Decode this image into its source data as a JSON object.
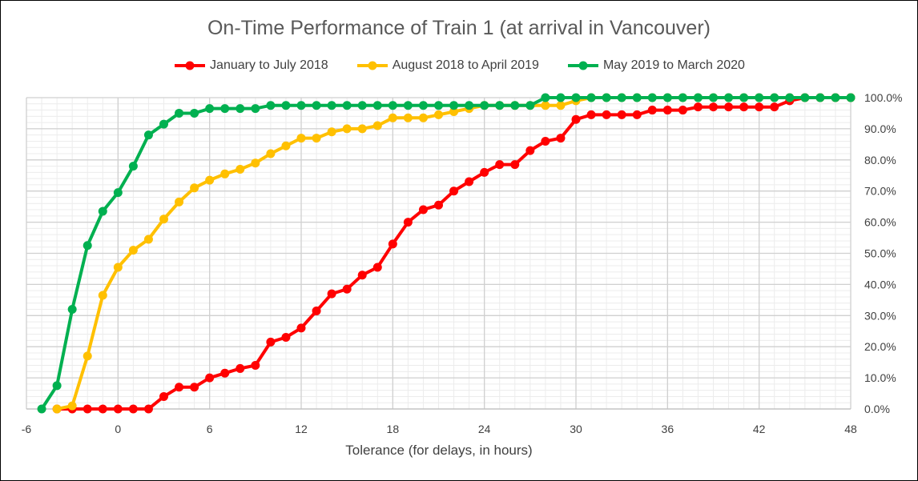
{
  "chart_data": {
    "type": "line",
    "title": "On-Time Performance of Train 1 (at arrival in Vancouver)",
    "xlabel": "Tolerance (for delays, in hours)",
    "ylabel": "",
    "xlim": [
      -6,
      48
    ],
    "ylim": [
      0,
      100
    ],
    "x_ticks": [
      -6,
      0,
      6,
      12,
      18,
      24,
      30,
      36,
      42,
      48
    ],
    "x_tick_labels": [
      "-6",
      "0",
      "6",
      "12",
      "18",
      "24",
      "30",
      "36",
      "42",
      "48"
    ],
    "y_ticks": [
      0,
      10,
      20,
      30,
      40,
      50,
      60,
      70,
      80,
      90,
      100
    ],
    "y_tick_labels": [
      "0.0%",
      "10.0%",
      "20.0%",
      "30.0%",
      "40.0%",
      "50.0%",
      "60.0%",
      "70.0%",
      "80.0%",
      "90.0%",
      "100.0%"
    ],
    "grid": true,
    "legend_position": "top",
    "y_axis_side": "right",
    "series": [
      {
        "name": "January to July 2018",
        "color": "#ff0000",
        "x": [
          -4,
          -3,
          -2,
          -1,
          0,
          1,
          2,
          3,
          4,
          5,
          6,
          7,
          8,
          9,
          10,
          11,
          12,
          13,
          14,
          15,
          16,
          17,
          18,
          19,
          20,
          21,
          22,
          23,
          24,
          25,
          26,
          27,
          28,
          29,
          30,
          31,
          32,
          33,
          34,
          35,
          36,
          37,
          38,
          39,
          40,
          41,
          42,
          43,
          44,
          45,
          46,
          47,
          48
        ],
        "values": [
          0,
          0,
          0,
          0,
          0,
          0,
          0,
          4,
          7,
          7,
          10,
          11.5,
          13,
          14,
          21.5,
          23,
          26,
          31.5,
          37,
          38.5,
          43,
          45.5,
          53,
          60,
          64,
          65.5,
          70,
          73,
          76,
          78.5,
          78.5,
          83,
          86,
          87,
          93,
          94.5,
          94.5,
          94.5,
          94.5,
          96,
          96,
          96,
          97,
          97,
          97,
          97,
          97,
          97,
          99,
          100,
          100,
          100,
          100
        ]
      },
      {
        "name": "August 2018 to April 2019",
        "color": "#ffc000",
        "x": [
          -4,
          -3,
          -2,
          -1,
          0,
          1,
          2,
          3,
          4,
          5,
          6,
          7,
          8,
          9,
          10,
          11,
          12,
          13,
          14,
          15,
          16,
          17,
          18,
          19,
          20,
          21,
          22,
          23,
          24,
          25,
          26,
          27,
          28,
          29,
          30,
          31,
          32,
          33,
          34,
          35,
          36,
          37,
          38,
          39,
          40,
          41,
          42,
          43,
          44,
          45,
          46,
          47,
          48
        ],
        "values": [
          0,
          1,
          17,
          36.5,
          45.5,
          51,
          54.5,
          61,
          66.5,
          71,
          73.5,
          75.5,
          77,
          79,
          82,
          84.5,
          87,
          87,
          89,
          90,
          90,
          91,
          93.5,
          93.5,
          93.5,
          94.5,
          95.5,
          96.5,
          97.5,
          97.5,
          97.5,
          97.5,
          97.5,
          97.5,
          99,
          100,
          100,
          100,
          100,
          100,
          100,
          100,
          100,
          100,
          100,
          100,
          100,
          100,
          100,
          100,
          100,
          100,
          100
        ]
      },
      {
        "name": "May 2019 to March 2020",
        "color": "#00b050",
        "x": [
          -5,
          -4,
          -3,
          -2,
          -1,
          0,
          1,
          2,
          3,
          4,
          5,
          6,
          7,
          8,
          9,
          10,
          11,
          12,
          13,
          14,
          15,
          16,
          17,
          18,
          19,
          20,
          21,
          22,
          23,
          24,
          25,
          26,
          27,
          28,
          29,
          30,
          31,
          32,
          33,
          34,
          35,
          36,
          37,
          38,
          39,
          40,
          41,
          42,
          43,
          44,
          45,
          46,
          47,
          48
        ],
        "values": [
          0,
          7.5,
          32,
          52.5,
          63.5,
          69.5,
          78,
          88,
          91.5,
          95,
          95,
          96.5,
          96.5,
          96.5,
          96.5,
          97.5,
          97.5,
          97.5,
          97.5,
          97.5,
          97.5,
          97.5,
          97.5,
          97.5,
          97.5,
          97.5,
          97.5,
          97.5,
          97.5,
          97.5,
          97.5,
          97.5,
          97.5,
          100,
          100,
          100,
          100,
          100,
          100,
          100,
          100,
          100,
          100,
          100,
          100,
          100,
          100,
          100,
          100,
          100,
          100,
          100,
          100,
          100
        ]
      }
    ]
  }
}
